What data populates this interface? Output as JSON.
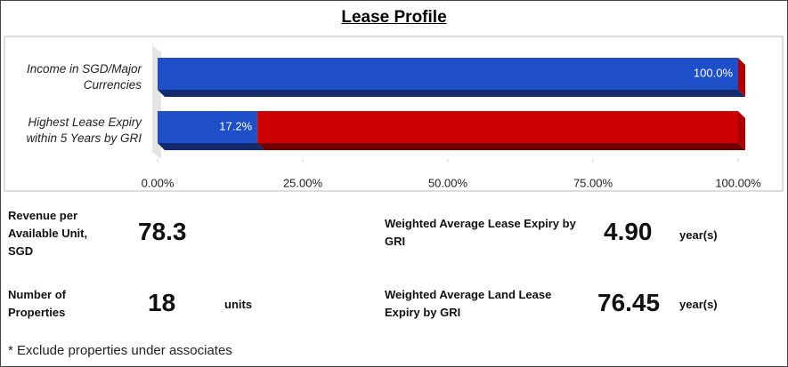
{
  "chart_data": {
    "type": "bar",
    "orientation": "horizontal",
    "stacked": true,
    "title": "Lease Profile",
    "categories": [
      "Income in SGD/Major Currencies",
      "Highest Lease Expiry within 5 Years by GRI"
    ],
    "series": [
      {
        "color": "#1f4fc8",
        "values": [
          100,
          17.2
        ],
        "value_labels": [
          "100.0%",
          "17.2%"
        ]
      },
      {
        "color": "#cc0000",
        "values": [
          0,
          82.8
        ]
      }
    ],
    "xlim": [
      0,
      100
    ],
    "xticks": [
      {
        "value": 0,
        "label": "0.00%"
      },
      {
        "value": 25,
        "label": "25.00%"
      },
      {
        "value": 50,
        "label": "50.00%"
      },
      {
        "value": 75,
        "label": "75.00%"
      },
      {
        "value": 100,
        "label": "100.00%"
      }
    ]
  },
  "metrics": [
    {
      "label": "Revenue per Available Unit, SGD",
      "value": "78.3"
    },
    {
      "label": "Weighted Average Lease Expiry by GRI",
      "value": "4.90",
      "unit": "year(s)"
    },
    {
      "label": "Number of Properties",
      "value": "18",
      "unit": "units"
    },
    {
      "label": "Weighted Average Land Lease Expiry by GRI",
      "value": "76.45",
      "unit": "year(s)"
    }
  ],
  "footnote": "* Exclude properties under associates"
}
